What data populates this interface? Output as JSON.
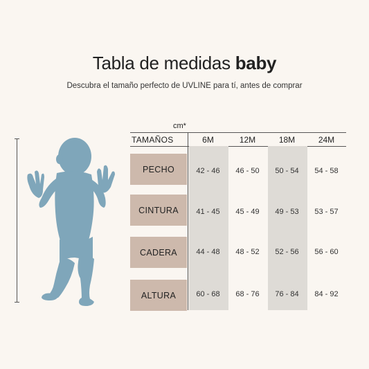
{
  "title": {
    "main": "Tabla de medidas",
    "bold": "baby"
  },
  "subtitle": "Descubra el tamaño perfecto de UVLINE para tí,  antes de comprar",
  "table": {
    "unit": "cm*",
    "header_label": "TAMAÑOS",
    "sizes": [
      "6M",
      "12M",
      "18M",
      "24M"
    ],
    "rows": [
      {
        "label": "PECHO",
        "values": [
          "42 - 46",
          "46 - 50",
          "50 - 54",
          "54 - 58"
        ]
      },
      {
        "label": "CINTURA",
        "values": [
          "41 - 45",
          "45 - 49",
          "49 - 53",
          "53 - 57"
        ]
      },
      {
        "label": "CADERA",
        "values": [
          "44 - 48",
          "48 - 52",
          "52 - 56",
          "56 - 60"
        ]
      },
      {
        "label": "ALTURA",
        "values": [
          "60 - 68",
          "68 - 76",
          "76 - 84",
          "84 - 92"
        ]
      }
    ]
  },
  "colors": {
    "background": "#faf6f1",
    "figure": "#7fa6ba",
    "label_bg": "#cdb9ac",
    "column_bg": "#dedbd6"
  },
  "icons": {
    "figure": "baby-silhouette-icon"
  }
}
